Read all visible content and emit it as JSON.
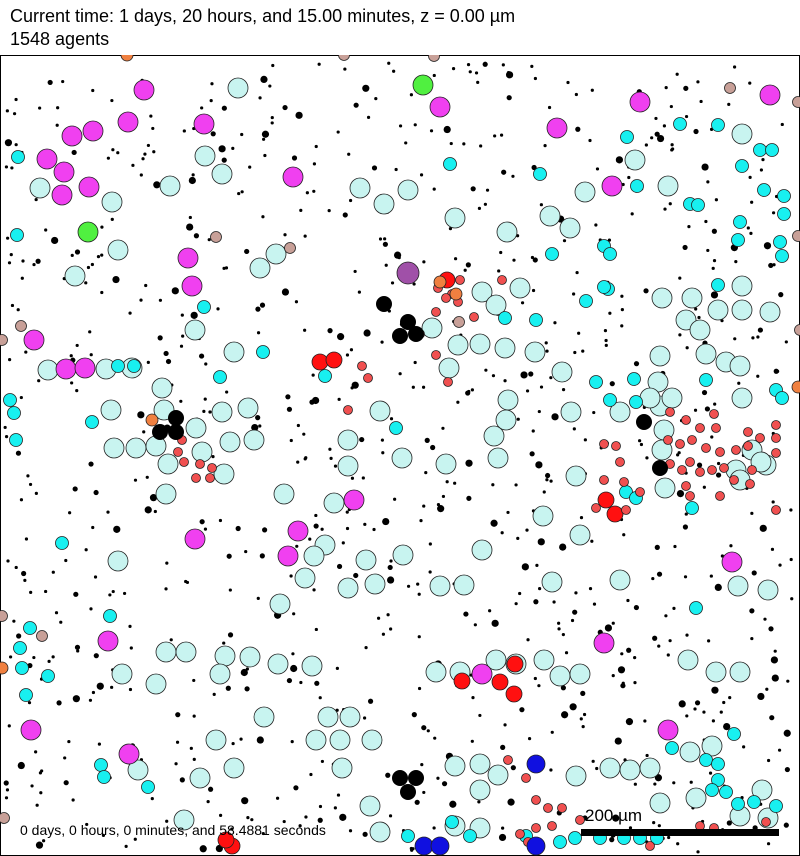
{
  "header": {
    "time_line": "Current time: 1 days, 20 hours, and 15.00 minutes, z = 0.00 µm",
    "agents_line": "1548 agents"
  },
  "footer": {
    "sim_time": "0 days, 0 hours, 0 minutes, and 58.4881 seconds"
  },
  "scale_bar": {
    "label": "200 µm"
  },
  "colors": {
    "large_cell_fill": "#c8f4f0",
    "cyan_cell": "#18f0f0",
    "magenta_cell": "#f040f0",
    "red_cell": "#ff1010",
    "red_small": "#f05050",
    "green_cell": "#50f040",
    "purple_cell": "#a050a8",
    "blue_cell": "#1010e0",
    "orange_cell": "#f08040",
    "tan_cell": "#c8a098",
    "debris": "#000000"
  }
}
